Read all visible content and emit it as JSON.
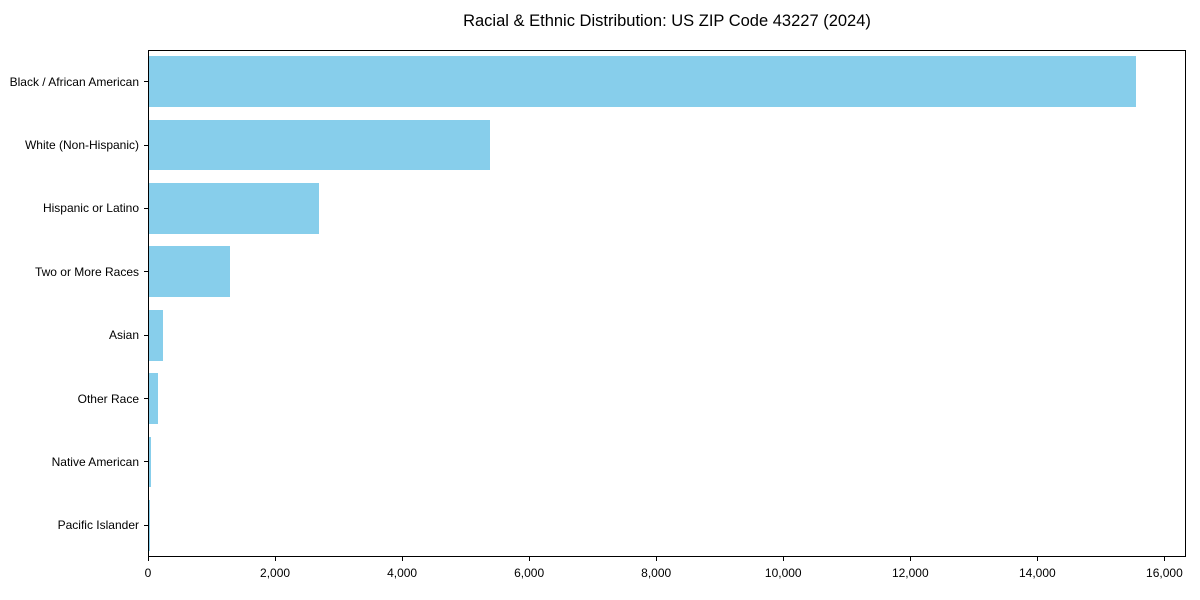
{
  "chart_data": {
    "type": "bar",
    "orientation": "horizontal",
    "title": "Racial & Ethnic Distribution: US ZIP Code 43227 (2024)",
    "categories": [
      "Black / African American",
      "White (Non-Hispanic)",
      "Hispanic or Latino",
      "Two or More Races",
      "Asian",
      "Other Race",
      "Native American",
      "Pacific Islander"
    ],
    "values": [
      15560,
      5380,
      2680,
      1275,
      225,
      140,
      25,
      5
    ],
    "xlabel": "",
    "ylabel": "",
    "xlim": [
      0,
      16340
    ],
    "x_ticks": [
      0,
      2000,
      4000,
      6000,
      8000,
      10000,
      12000,
      14000,
      16000
    ],
    "x_tick_labels": [
      "0",
      "2,000",
      "4,000",
      "6,000",
      "8,000",
      "10,000",
      "12,000",
      "14,000",
      "16,000"
    ],
    "bar_color": "#87CEEB",
    "bar_height_fraction": 0.8,
    "grid": false,
    "legend": null,
    "frame": "full-box",
    "background_color": "#ffffff",
    "text_color": "#000000"
  }
}
